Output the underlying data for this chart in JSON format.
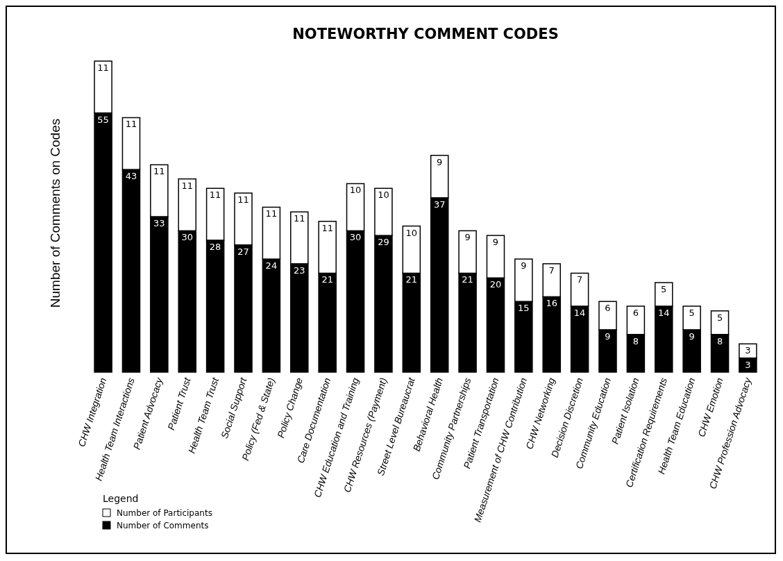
{
  "chart_data": {
    "type": "bar",
    "title": "NOTEWORTHY COMMENT CODES",
    "ylabel": "Number of Comments on Codes",
    "legend_title": "Legend",
    "categories": [
      "CHW Integration",
      "Health Team Interactions",
      "Patient Advocacy",
      "Patient Trust",
      "Health Team Trust",
      "Social Support",
      "Policy (Fed & State)",
      "Policy Change",
      "Care Documentation",
      "CHW Education and Training",
      "CHW Resources (Payment)",
      "Street Level Bureaucrat",
      "Behavioral Health",
      "Community Partnerships",
      "Patient Transportation",
      "Measurement of CHW Contribution",
      "CHW Networking",
      "Decision Discretion",
      "Community Education",
      "Patient Isolation",
      "Certification Requirements",
      "Health Team Education",
      "CHW Emotion",
      "CHW Profession Advocacy"
    ],
    "series": [
      {
        "name": "Number of Comments",
        "color": "#000000",
        "values": [
          55,
          43,
          33,
          30,
          28,
          27,
          24,
          23,
          21,
          30,
          29,
          21,
          37,
          21,
          20,
          15,
          16,
          14,
          9,
          8,
          14,
          9,
          8,
          3
        ]
      },
      {
        "name": "Number of Participants",
        "color": "#ffffff",
        "values": [
          11,
          11,
          11,
          11,
          11,
          11,
          11,
          11,
          11,
          10,
          10,
          10,
          9,
          9,
          9,
          9,
          7,
          7,
          6,
          6,
          5,
          5,
          5,
          3
        ]
      }
    ],
    "stacked": true,
    "data_labels": true,
    "legend": "bottom left",
    "grid": false
  }
}
